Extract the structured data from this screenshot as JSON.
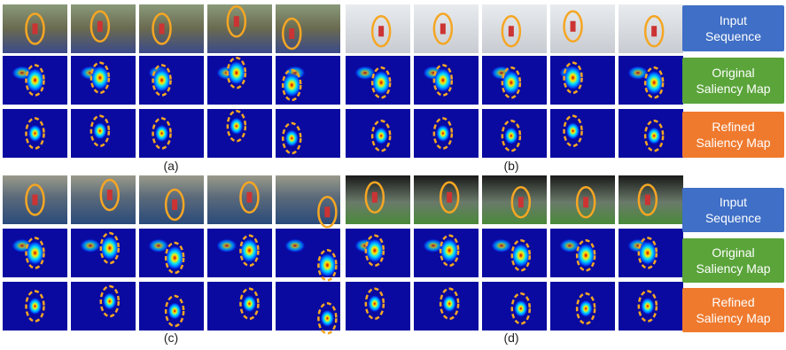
{
  "panels": [
    {
      "caption": "(a)"
    },
    {
      "caption": "(b)"
    },
    {
      "caption": "(c)"
    },
    {
      "caption": "(d)"
    }
  ],
  "legends": [
    {
      "rows": [
        "Input Sequence",
        "Original Saliency Map",
        "Refined Saliency Map"
      ]
    },
    {
      "rows": [
        "Input Sequence",
        "Original Saliency Map",
        "Refined Saliency Map"
      ]
    }
  ]
}
